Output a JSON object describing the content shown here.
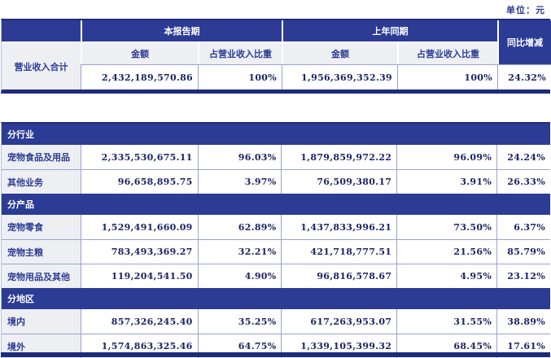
{
  "unit_label": "单位：元",
  "header": {
    "current_period": "本报告期",
    "prior_period": "上年同期",
    "yoy": "同比增减",
    "amount": "金额",
    "pct": "占营业收入比重"
  },
  "summary": {
    "label": "营业收入合计",
    "current_amount": "2,432,189,570.86",
    "current_pct": "100%",
    "prior_amount": "1,956,369,352.39",
    "prior_pct": "100%",
    "yoy": "24.32%"
  },
  "sections": [
    {
      "banner": "分行业",
      "rows": [
        {
          "label": "宠物食品及用品",
          "current_amount": "2,335,530,675.11",
          "current_pct": "96.03%",
          "prior_amount": "1,879,859,972.22",
          "prior_pct": "96.09%",
          "yoy": "24.24%"
        },
        {
          "label": "其他业务",
          "current_amount": "96,658,895.75",
          "current_pct": "3.97%",
          "prior_amount": "76,509,380.17",
          "prior_pct": "3.91%",
          "yoy": "26.33%"
        }
      ]
    },
    {
      "banner": "分产品",
      "rows": [
        {
          "label": "宠物零食",
          "current_amount": "1,529,491,660.09",
          "current_pct": "62.89%",
          "prior_amount": "1,437,833,996.21",
          "prior_pct": "73.50%",
          "yoy": "6.37%"
        },
        {
          "label": "宠物主粮",
          "current_amount": "783,493,369.27",
          "current_pct": "32.21%",
          "prior_amount": "421,718,777.51",
          "prior_pct": "21.56%",
          "yoy": "85.79%"
        },
        {
          "label": "宠物用品及其他",
          "current_amount": "119,204,541.50",
          "current_pct": "4.90%",
          "prior_amount": "96,816,578.67",
          "prior_pct": "4.95%",
          "yoy": "23.12%"
        }
      ]
    },
    {
      "banner": "分地区",
      "rows": [
        {
          "label": "境内",
          "current_amount": "857,326,245.40",
          "current_pct": "35.25%",
          "prior_amount": "617,263,953.07",
          "prior_pct": "31.55%",
          "yoy": "38.89%"
        },
        {
          "label": "境外",
          "current_amount": "1,574,863,325.46",
          "current_pct": "64.75%",
          "prior_amount": "1,339,105,399.32",
          "prior_pct": "68.45%",
          "yoy": "17.61%"
        }
      ]
    }
  ],
  "colors": {
    "header_blue": "#2c3b94",
    "border_dark_blue": "#1e2b7d",
    "label_gray": "#edeff3",
    "number_navy": "#1c2464",
    "grid_line": "#9aa4cf"
  }
}
